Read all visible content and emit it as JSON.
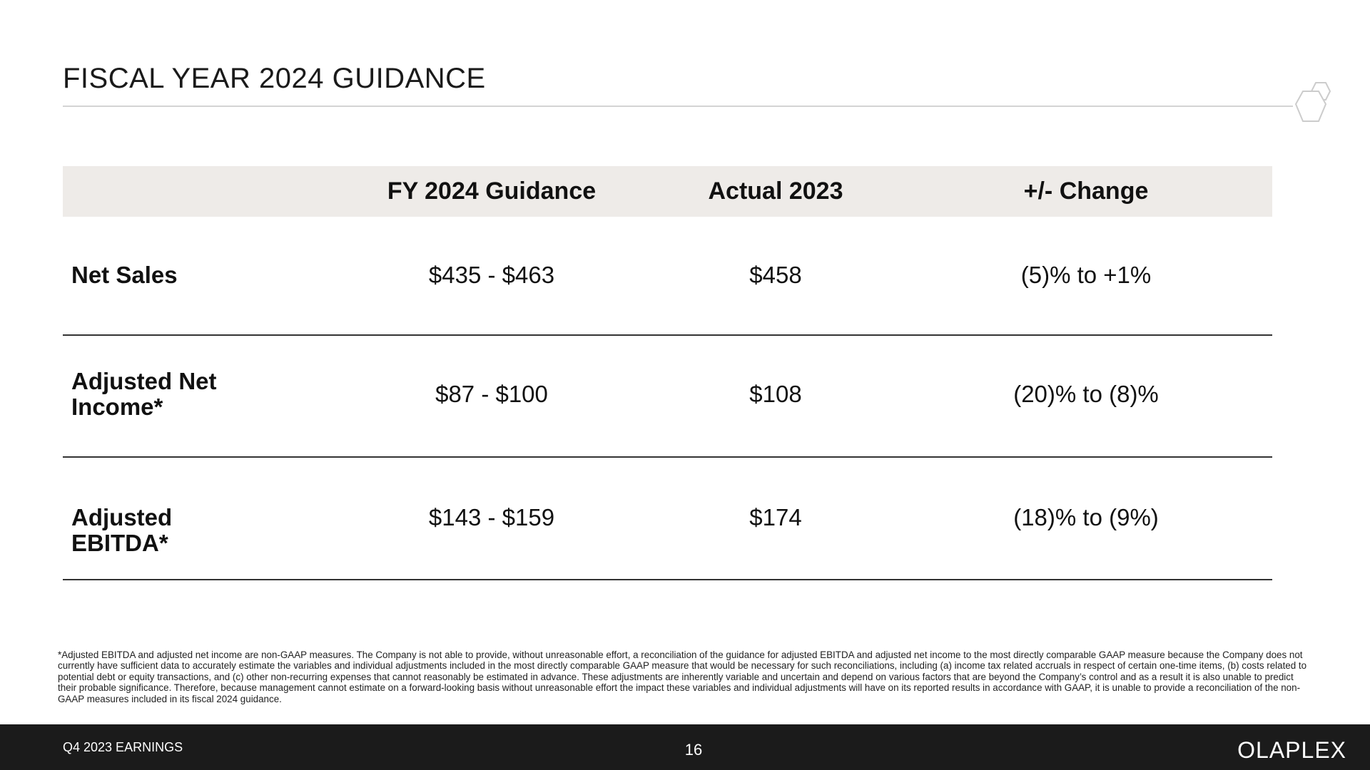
{
  "header": {
    "title": "FISCAL YEAR 2024 GUIDANCE"
  },
  "table": {
    "columns": [
      "FY 2024  Guidance",
      "Actual 2023",
      "+/- Change"
    ],
    "rows": [
      [
        "Net Sales",
        "$435 - $463",
        "$458",
        "(5)% to +1%"
      ],
      [
        "Adjusted Net Income*",
        "$87 - $100",
        "$108",
        "(20)% to (8)%"
      ],
      [
        "Adjusted EBITDA*",
        "$143 - $159",
        "$174",
        "(18)% to (9%)"
      ]
    ]
  },
  "footnote": "*Adjusted EBITDA and adjusted net income are non-GAAP measures. The Company is not able to provide, without unreasonable effort, a reconciliation of the guidance for adjusted EBITDA and adjusted net income to the most directly comparable GAAP measure because the Company does not currently have sufficient data to accurately estimate the variables and individual adjustments included in the most directly comparable GAAP measure that would be necessary for such reconciliations, including (a) income tax related accruals in respect of certain one-time items, (b) costs related to potential debt or equity transactions, and (c) other non-recurring expenses that cannot reasonably be estimated in advance. These adjustments are inherently variable and uncertain and depend on various factors that are beyond the Company’s control and as a result it is also unable to predict their probable significance. Therefore, because management cannot estimate on a forward-looking basis without unreasonable effort the impact these variables and individual adjustments will have on its reported results in accordance with GAAP, it is unable to provide a reconciliation of the non-GAAP measures included in its fiscal 2024 guidance.",
  "footer": {
    "left": "Q4 2023 EARNINGS",
    "page": "16",
    "brand": "OLAPLEX"
  }
}
